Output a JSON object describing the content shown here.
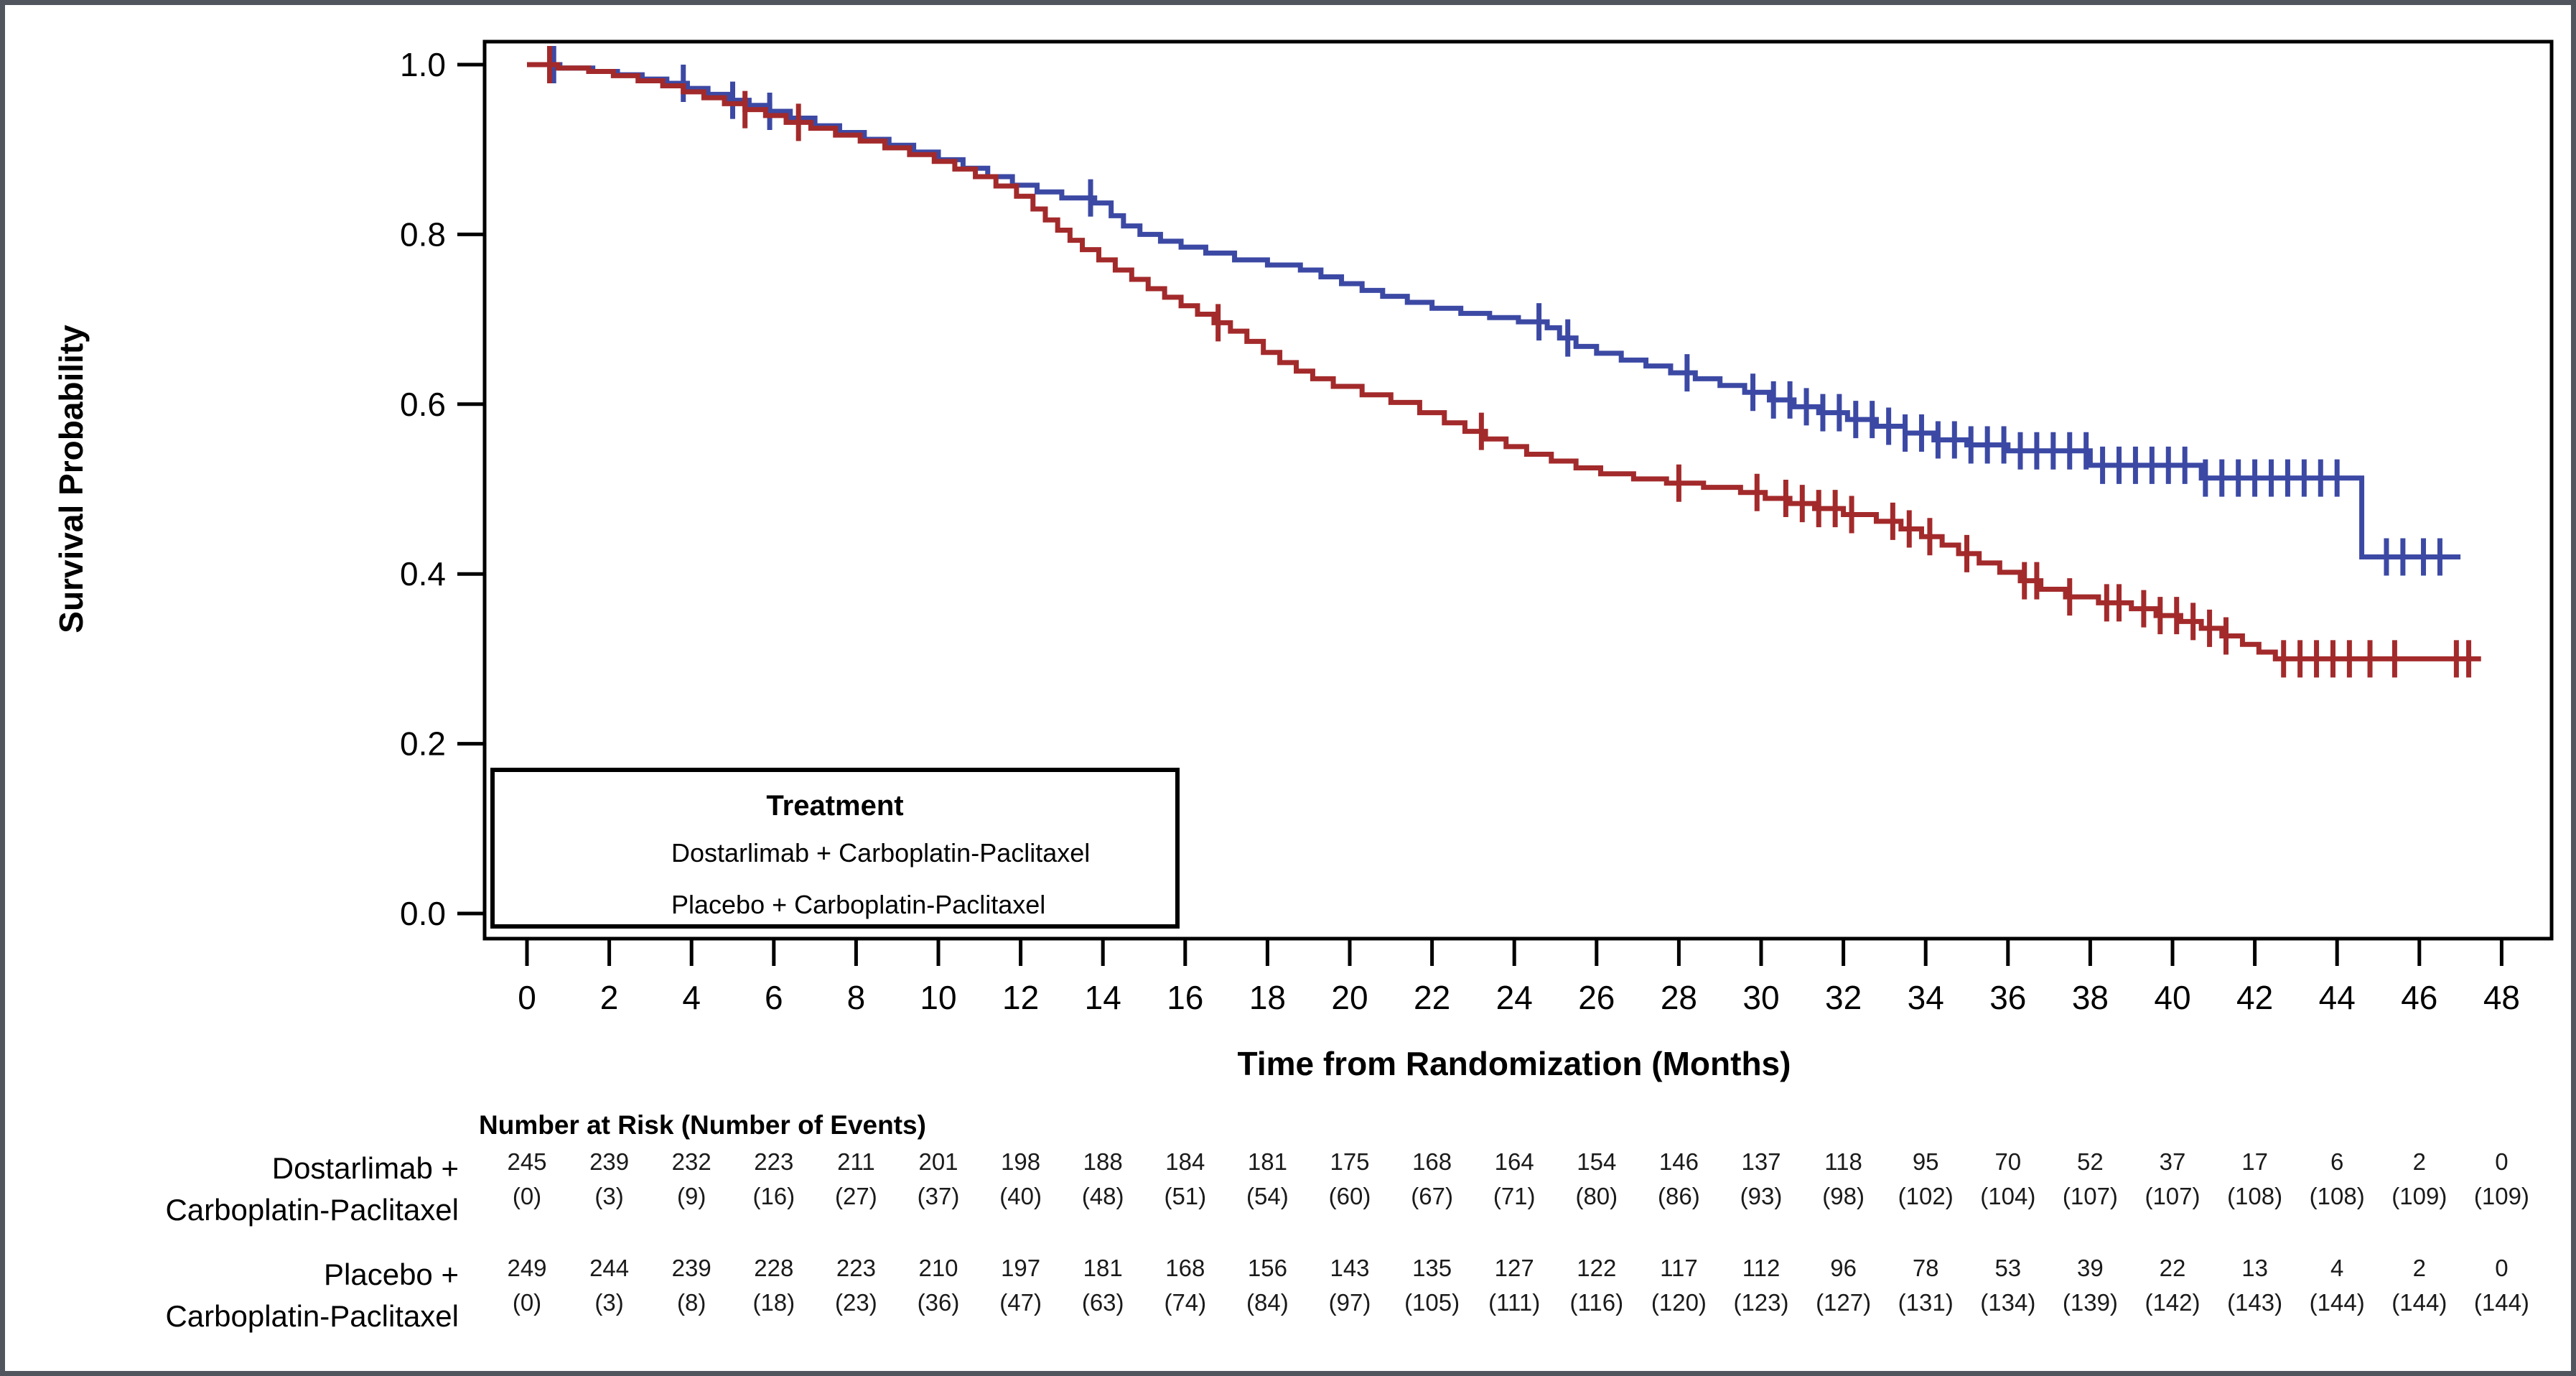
{
  "chart_data": {
    "type": "line",
    "subtype": "kaplan_meier_step",
    "title": "",
    "xlabel": "Time from Randomization (Months)",
    "ylabel": "Survival Probability",
    "xlim": [
      0,
      48
    ],
    "ylim": [
      0.0,
      1.0
    ],
    "x_ticks": [
      0,
      2,
      4,
      6,
      8,
      10,
      12,
      14,
      16,
      18,
      20,
      22,
      24,
      26,
      28,
      30,
      32,
      34,
      36,
      38,
      40,
      42,
      44,
      46,
      48
    ],
    "y_ticks": [
      1.0,
      0.8,
      0.6,
      0.4,
      0.2,
      0.0
    ],
    "grid": "off",
    "legend": {
      "title": "Treatment",
      "position": "inside lower-left, boxed",
      "entries": [
        {
          "label": "Dostarlimab + Carboplatin-Paclitaxel",
          "color": "#3C49A4"
        },
        {
          "label": "Placebo + Carboplatin-Paclitaxel",
          "color": "#A32A2B"
        }
      ]
    },
    "series": [
      {
        "name": "Dostarlimab + Carboplatin-Paclitaxel",
        "color": "#3C49A4",
        "steps": [
          [
            0,
            1.0
          ],
          [
            0.8,
            0.996
          ],
          [
            1.6,
            0.992
          ],
          [
            2.2,
            0.988
          ],
          [
            2.8,
            0.983
          ],
          [
            3.4,
            0.978
          ],
          [
            3.9,
            0.972
          ],
          [
            4.4,
            0.965
          ],
          [
            4.9,
            0.958
          ],
          [
            5.4,
            0.952
          ],
          [
            5.9,
            0.945
          ],
          [
            6.4,
            0.937
          ],
          [
            7.0,
            0.928
          ],
          [
            7.6,
            0.92
          ],
          [
            8.2,
            0.912
          ],
          [
            8.8,
            0.905
          ],
          [
            9.4,
            0.897
          ],
          [
            10.0,
            0.888
          ],
          [
            10.6,
            0.878
          ],
          [
            11.2,
            0.868
          ],
          [
            11.8,
            0.858
          ],
          [
            12.4,
            0.85
          ],
          [
            13.0,
            0.843
          ],
          [
            13.8,
            0.837
          ],
          [
            14.2,
            0.822
          ],
          [
            14.5,
            0.81
          ],
          [
            14.9,
            0.8
          ],
          [
            15.4,
            0.792
          ],
          [
            15.9,
            0.785
          ],
          [
            16.5,
            0.778
          ],
          [
            17.2,
            0.77
          ],
          [
            18.0,
            0.764
          ],
          [
            18.8,
            0.758
          ],
          [
            19.3,
            0.75
          ],
          [
            19.8,
            0.742
          ],
          [
            20.3,
            0.734
          ],
          [
            20.8,
            0.727
          ],
          [
            21.4,
            0.72
          ],
          [
            22.0,
            0.713
          ],
          [
            22.7,
            0.707
          ],
          [
            23.4,
            0.702
          ],
          [
            24.1,
            0.697
          ],
          [
            24.8,
            0.69
          ],
          [
            25.1,
            0.678
          ],
          [
            25.5,
            0.668
          ],
          [
            26.0,
            0.66
          ],
          [
            26.6,
            0.652
          ],
          [
            27.2,
            0.645
          ],
          [
            27.8,
            0.637
          ],
          [
            28.4,
            0.63
          ],
          [
            29.0,
            0.622
          ],
          [
            29.6,
            0.614
          ],
          [
            30.2,
            0.605
          ],
          [
            30.8,
            0.597
          ],
          [
            31.4,
            0.59
          ],
          [
            32.1,
            0.582
          ],
          [
            32.8,
            0.574
          ],
          [
            33.5,
            0.566
          ],
          [
            34.2,
            0.558
          ],
          [
            35.0,
            0.552
          ],
          [
            36.0,
            0.545
          ],
          [
            38.0,
            0.528
          ],
          [
            40.7,
            0.513
          ],
          [
            44.6,
            0.42
          ],
          [
            47.0,
            0.42
          ]
        ],
        "censor_times": [
          0.65,
          3.8,
          5.0,
          5.9,
          13.7,
          24.6,
          25.3,
          28.2,
          29.8,
          30.3,
          30.7,
          31.1,
          31.5,
          31.9,
          32.3,
          32.7,
          33.1,
          33.5,
          33.9,
          34.3,
          34.7,
          35.1,
          35.5,
          35.9,
          36.3,
          36.7,
          37.1,
          37.5,
          37.9,
          38.3,
          38.7,
          39.1,
          39.5,
          39.9,
          40.3,
          40.8,
          41.2,
          41.6,
          42.0,
          42.4,
          42.8,
          43.2,
          43.6,
          44.0,
          45.2,
          45.6,
          46.1,
          46.5
        ]
      },
      {
        "name": "Placebo + Carboplatin-Paclitaxel",
        "color": "#A32A2B",
        "steps": [
          [
            0,
            1.0
          ],
          [
            0.75,
            0.996
          ],
          [
            1.5,
            0.992
          ],
          [
            2.1,
            0.987
          ],
          [
            2.7,
            0.981
          ],
          [
            3.3,
            0.975
          ],
          [
            3.8,
            0.968
          ],
          [
            4.3,
            0.961
          ],
          [
            4.8,
            0.954
          ],
          [
            5.3,
            0.947
          ],
          [
            5.8,
            0.94
          ],
          [
            6.3,
            0.932
          ],
          [
            6.9,
            0.925
          ],
          [
            7.5,
            0.917
          ],
          [
            8.1,
            0.91
          ],
          [
            8.7,
            0.902
          ],
          [
            9.3,
            0.894
          ],
          [
            9.9,
            0.886
          ],
          [
            10.4,
            0.877
          ],
          [
            10.9,
            0.868
          ],
          [
            11.4,
            0.857
          ],
          [
            11.9,
            0.845
          ],
          [
            12.3,
            0.83
          ],
          [
            12.6,
            0.817
          ],
          [
            12.9,
            0.805
          ],
          [
            13.2,
            0.793
          ],
          [
            13.5,
            0.782
          ],
          [
            13.9,
            0.77
          ],
          [
            14.3,
            0.758
          ],
          [
            14.7,
            0.747
          ],
          [
            15.1,
            0.736
          ],
          [
            15.5,
            0.726
          ],
          [
            15.9,
            0.716
          ],
          [
            16.3,
            0.706
          ],
          [
            16.7,
            0.696
          ],
          [
            17.1,
            0.686
          ],
          [
            17.5,
            0.674
          ],
          [
            17.9,
            0.661
          ],
          [
            18.3,
            0.649
          ],
          [
            18.7,
            0.639
          ],
          [
            19.1,
            0.63
          ],
          [
            19.6,
            0.621
          ],
          [
            20.3,
            0.611
          ],
          [
            21.0,
            0.602
          ],
          [
            21.7,
            0.59
          ],
          [
            22.3,
            0.578
          ],
          [
            22.8,
            0.568
          ],
          [
            23.3,
            0.559
          ],
          [
            23.8,
            0.55
          ],
          [
            24.3,
            0.541
          ],
          [
            24.9,
            0.533
          ],
          [
            25.5,
            0.525
          ],
          [
            26.1,
            0.518
          ],
          [
            26.9,
            0.512
          ],
          [
            27.7,
            0.507
          ],
          [
            28.6,
            0.502
          ],
          [
            29.5,
            0.496
          ],
          [
            30.1,
            0.489
          ],
          [
            30.7,
            0.483
          ],
          [
            31.3,
            0.477
          ],
          [
            32.0,
            0.47
          ],
          [
            32.8,
            0.462
          ],
          [
            33.4,
            0.453
          ],
          [
            33.9,
            0.444
          ],
          [
            34.4,
            0.434
          ],
          [
            34.8,
            0.424
          ],
          [
            35.3,
            0.413
          ],
          [
            35.8,
            0.402
          ],
          [
            36.3,
            0.392
          ],
          [
            36.8,
            0.382
          ],
          [
            37.4,
            0.373
          ],
          [
            38.2,
            0.366
          ],
          [
            39.0,
            0.359
          ],
          [
            39.6,
            0.351
          ],
          [
            40.2,
            0.344
          ],
          [
            40.7,
            0.336
          ],
          [
            41.2,
            0.327
          ],
          [
            41.7,
            0.317
          ],
          [
            42.1,
            0.308
          ],
          [
            42.5,
            0.3
          ],
          [
            47.5,
            0.3
          ]
        ],
        "censor_times": [
          0.55,
          5.3,
          6.6,
          16.8,
          23.2,
          28.0,
          29.9,
          30.6,
          31.0,
          31.4,
          31.8,
          32.2,
          33.2,
          33.6,
          34.1,
          35.0,
          36.4,
          36.7,
          37.5,
          38.4,
          38.7,
          39.3,
          39.7,
          40.1,
          40.5,
          40.9,
          41.3,
          42.7,
          43.1,
          43.5,
          43.9,
          44.3,
          44.8,
          45.4,
          46.9,
          47.2
        ]
      }
    ],
    "risk_table": {
      "header": "Number at Risk (Number of Events)",
      "times": [
        0,
        2,
        4,
        6,
        8,
        10,
        12,
        14,
        16,
        18,
        20,
        22,
        24,
        26,
        28,
        30,
        32,
        34,
        36,
        38,
        40,
        42,
        44,
        46,
        48
      ],
      "rows": [
        {
          "label_line1": "Dostarlimab +",
          "label_line2": "Carboplatin-Paclitaxel",
          "n_at_risk": [
            245,
            239,
            232,
            223,
            211,
            201,
            198,
            188,
            184,
            181,
            175,
            168,
            164,
            154,
            146,
            137,
            118,
            95,
            70,
            52,
            37,
            17,
            6,
            2,
            0
          ],
          "events": [
            0,
            3,
            9,
            16,
            27,
            37,
            40,
            48,
            51,
            54,
            60,
            67,
            71,
            80,
            86,
            93,
            98,
            102,
            104,
            107,
            107,
            108,
            108,
            109,
            109
          ]
        },
        {
          "label_line1": "Placebo +",
          "label_line2": "Carboplatin-Paclitaxel",
          "n_at_risk": [
            249,
            244,
            239,
            228,
            223,
            210,
            197,
            181,
            168,
            156,
            143,
            135,
            127,
            122,
            117,
            112,
            96,
            78,
            53,
            39,
            22,
            13,
            4,
            2,
            0
          ],
          "events": [
            0,
            3,
            8,
            18,
            23,
            36,
            47,
            63,
            74,
            84,
            97,
            105,
            111,
            116,
            120,
            123,
            127,
            131,
            134,
            139,
            142,
            143,
            144,
            144,
            144
          ]
        }
      ]
    },
    "colors": {
      "axis": "#000000",
      "background": "#ffffff",
      "outer_border": "#50555e"
    }
  }
}
